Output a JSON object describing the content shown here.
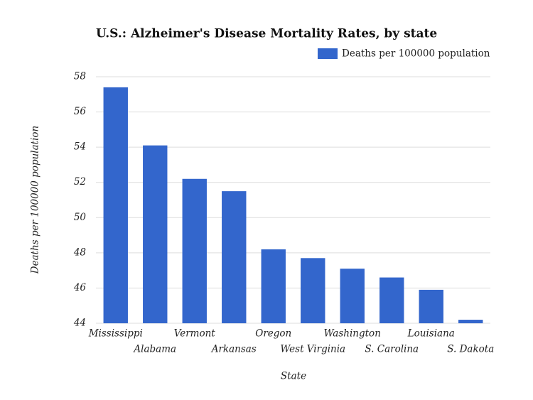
{
  "chart_data": {
    "type": "bar",
    "title": "U.S.: Alzheimer's Disease Mortality Rates, by state",
    "x_label": "State",
    "y_label": "Deaths per 100000 population",
    "categories": [
      "Mississippi",
      "Alabama",
      "Vermont",
      "Arkansas",
      "Oregon",
      "West Virginia",
      "Washington",
      "S. Carolina",
      "Louisiana",
      "S. Dakota"
    ],
    "series": [
      {
        "name": "Deaths per 100000 population",
        "color": "#3366cc",
        "values": [
          57.4,
          54.1,
          52.2,
          51.5,
          48.2,
          47.7,
          47.1,
          46.6,
          45.9,
          44.2
        ]
      }
    ],
    "ylim": [
      44,
      58
    ],
    "yticks": [
      44,
      46,
      48,
      50,
      52,
      54,
      56,
      58
    ],
    "grid": true,
    "legend": "top-right"
  }
}
